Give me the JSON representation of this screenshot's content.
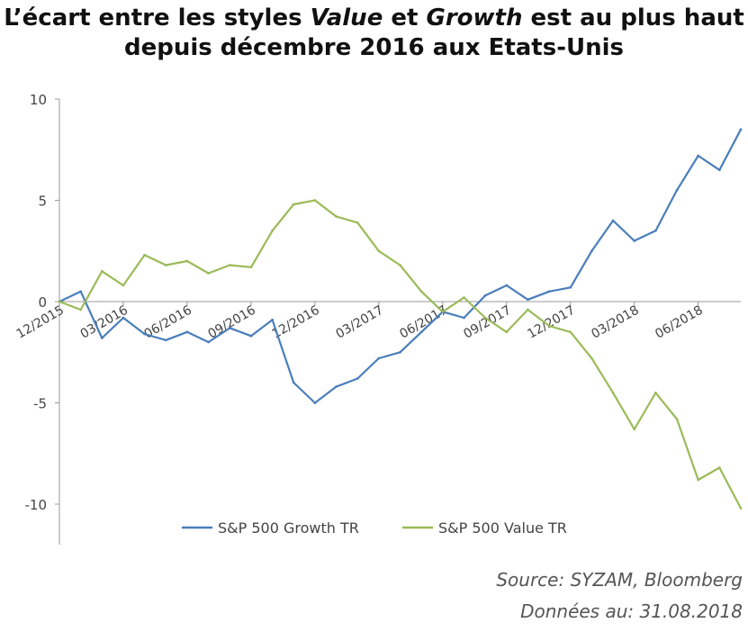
{
  "title": {
    "part1": "L’écart entre les styles ",
    "em1": "Value",
    "part2": " et ",
    "em2": "Growth",
    "part3": " est au plus haut",
    "line2": "depuis décembre 2016 aux Etats-Unis"
  },
  "source": "Source: SYZAM, Bloomberg",
  "date_note": "Données au: 31.08.2018",
  "colors": {
    "growth": "#4a7ebb",
    "value": "#9bbb59",
    "axis": "#999999"
  },
  "chart_data": {
    "type": "line",
    "title": "L’écart entre les styles Value et Growth est au plus haut depuis décembre 2016 aux Etats-Unis",
    "xlabel": "",
    "ylabel": "",
    "ylim": [
      -12,
      10
    ],
    "xlim": [
      "2015-12",
      "2018-08"
    ],
    "yticks": [
      10,
      5,
      0,
      -5,
      -10
    ],
    "ytick_labels": [
      "10",
      "5",
      "0",
      "-5",
      "-10"
    ],
    "xtick_labels": [
      "12/2015",
      "03/2016",
      "06/2016",
      "09/2016",
      "12/2016",
      "03/2017",
      "06/2017",
      "09/2017",
      "12/2017",
      "03/2018",
      "06/2018"
    ],
    "grid": false,
    "legend": "bottom",
    "x": [
      "2015-12",
      "2016-01",
      "2016-02",
      "2016-03",
      "2016-04",
      "2016-05",
      "2016-06",
      "2016-07",
      "2016-08",
      "2016-09",
      "2016-10",
      "2016-11",
      "2016-12",
      "2017-01",
      "2017-02",
      "2017-03",
      "2017-04",
      "2017-05",
      "2017-06",
      "2017-07",
      "2017-08",
      "2017-09",
      "2017-10",
      "2017-11",
      "2017-12",
      "2018-01",
      "2018-02",
      "2018-03",
      "2018-04",
      "2018-05",
      "2018-06",
      "2018-07",
      "2018-08"
    ],
    "series": [
      {
        "name": "S&P 500 Growth TR",
        "values": [
          0,
          0.5,
          -1.8,
          -0.8,
          -1.6,
          -1.9,
          -1.5,
          -2.0,
          -1.3,
          -1.7,
          -0.9,
          -4.0,
          -5.0,
          -4.2,
          -3.8,
          -2.8,
          -2.5,
          -1.5,
          -0.5,
          -0.8,
          0.3,
          0.8,
          0.1,
          0.5,
          0.7,
          2.5,
          4.0,
          3.0,
          3.5,
          5.5,
          7.2,
          6.5,
          8.5
        ]
      },
      {
        "name": "S&P 500 Value TR",
        "values": [
          0,
          -0.4,
          1.5,
          0.8,
          2.3,
          1.8,
          2.0,
          1.4,
          1.8,
          1.7,
          3.5,
          4.8,
          5.0,
          4.2,
          3.9,
          2.5,
          1.8,
          0.5,
          -0.5,
          0.2,
          -0.8,
          -1.5,
          -0.4,
          -1.2,
          -1.5,
          -2.8,
          -4.5,
          -6.3,
          -4.5,
          -5.8,
          -8.8,
          -8.2,
          -10.2
        ]
      }
    ]
  }
}
